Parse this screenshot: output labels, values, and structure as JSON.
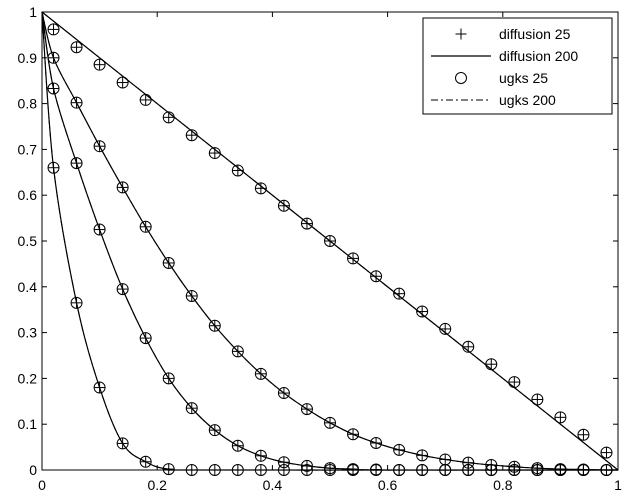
{
  "chart_data": {
    "type": "line",
    "title": "",
    "xlabel": "",
    "ylabel": "",
    "xlim": [
      0,
      1
    ],
    "ylim": [
      0,
      1
    ],
    "x_ticks": [
      "0",
      "0.2",
      "0.4",
      "0.6",
      "0.8",
      "1"
    ],
    "y_ticks": [
      "0",
      "0.1",
      "0.2",
      "0.3",
      "0.4",
      "0.5",
      "0.6",
      "0.7",
      "0.8",
      "0.9",
      "1"
    ],
    "grid": false,
    "legend_position": "top-right",
    "legend": [
      {
        "label": "diffusion 25",
        "marker": "plus"
      },
      {
        "label": "diffusion 200",
        "marker": "solid-line"
      },
      {
        "label": "ugks 25",
        "marker": "circle"
      },
      {
        "label": "ugks 200",
        "marker": "dash-dot-line"
      }
    ],
    "x_markers": [
      0.02,
      0.06,
      0.1,
      0.14,
      0.18,
      0.22,
      0.26,
      0.3,
      0.34,
      0.38,
      0.42,
      0.46,
      0.5,
      0.54,
      0.58,
      0.62,
      0.66,
      0.7,
      0.74,
      0.78,
      0.82,
      0.86,
      0.9,
      0.94,
      0.98
    ],
    "marker_profiles": [
      [
        0.66,
        0.365,
        0.18,
        0.058,
        0.018,
        0.002,
        0,
        0,
        0,
        0,
        0,
        0,
        0,
        0,
        0,
        0,
        0,
        0,
        0,
        0,
        0,
        0,
        0,
        0,
        0
      ],
      [
        0.833,
        0.67,
        0.525,
        0.395,
        0.288,
        0.2,
        0.135,
        0.087,
        0.053,
        0.031,
        0.017,
        0.009,
        0.004,
        0.002,
        0.001,
        0,
        0,
        0,
        0,
        0,
        0,
        0,
        0,
        0,
        0
      ],
      [
        0.9,
        0.802,
        0.707,
        0.617,
        0.531,
        0.452,
        0.38,
        0.315,
        0.259,
        0.21,
        0.168,
        0.133,
        0.103,
        0.078,
        0.059,
        0.044,
        0.032,
        0.023,
        0.016,
        0.011,
        0.007,
        0.004,
        0.002,
        0.001,
        0
      ],
      [
        0.962,
        0.923,
        0.885,
        0.846,
        0.808,
        0.77,
        0.731,
        0.692,
        0.654,
        0.615,
        0.577,
        0.538,
        0.5,
        0.462,
        0.423,
        0.385,
        0.346,
        0.308,
        0.269,
        0.231,
        0.192,
        0.154,
        0.115,
        0.077,
        0.038
      ]
    ],
    "line_profiles": [
      {
        "x": [
          0,
          0.02,
          0.06,
          0.1,
          0.14,
          0.18,
          0.22,
          0.3,
          1
        ],
        "y": [
          1,
          0.66,
          0.365,
          0.18,
          0.058,
          0.018,
          0.002,
          0,
          0
        ]
      },
      {
        "x": [
          0,
          0.02,
          0.06,
          0.1,
          0.14,
          0.18,
          0.22,
          0.26,
          0.3,
          0.34,
          0.38,
          0.42,
          0.46,
          0.5,
          0.54,
          0.6,
          1
        ],
        "y": [
          1,
          0.833,
          0.67,
          0.525,
          0.395,
          0.288,
          0.2,
          0.135,
          0.087,
          0.053,
          0.031,
          0.017,
          0.009,
          0.004,
          0.002,
          0,
          0
        ]
      },
      {
        "x": [
          0,
          0.02,
          0.06,
          0.1,
          0.14,
          0.18,
          0.22,
          0.26,
          0.3,
          0.34,
          0.38,
          0.42,
          0.46,
          0.5,
          0.54,
          0.58,
          0.62,
          0.66,
          0.7,
          0.74,
          0.78,
          0.82,
          0.86,
          0.9,
          0.94,
          0.98,
          1
        ],
        "y": [
          1,
          0.9,
          0.802,
          0.707,
          0.617,
          0.531,
          0.452,
          0.38,
          0.315,
          0.259,
          0.21,
          0.168,
          0.133,
          0.103,
          0.078,
          0.059,
          0.044,
          0.032,
          0.023,
          0.016,
          0.011,
          0.007,
          0.004,
          0.002,
          0.001,
          0,
          0
        ]
      },
      {
        "x": [
          0,
          1
        ],
        "y": [
          1,
          0
        ]
      }
    ]
  }
}
